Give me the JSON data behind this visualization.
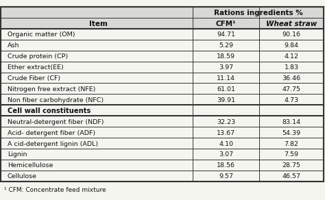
{
  "title_row": "Rations ingredients %",
  "header": [
    "Item",
    "CFM¹",
    "Wheat straw"
  ],
  "header_italic_col2": true,
  "section1_rows": [
    [
      "Organic matter (OM)",
      "94.71",
      "90.16"
    ],
    [
      "Ash",
      "5.29",
      "9.84"
    ],
    [
      "Crude protein (CP)",
      "18.59",
      "4.12"
    ],
    [
      "Ether extract(EE)",
      "3.97",
      "1.83"
    ],
    [
      "Crude Fiber (CF)",
      "11.14",
      "36.46"
    ],
    [
      "Nitrogen free extract (NFE)",
      "61.01",
      "47.75"
    ],
    [
      "Non fiber carbohydrate (NFC)",
      "39.91",
      "4.73"
    ]
  ],
  "section_header": "Cell wall constituents",
  "section2_rows": [
    [
      "Neutral-detergent fiber (NDF)",
      "32.23",
      "83.14"
    ],
    [
      "Acid- detergent fiber (ADF)",
      "13.67",
      "54.39"
    ],
    [
      "A cid-detergent lignin (ADL)",
      "4.10",
      "7.82"
    ],
    [
      "Lignin",
      "3.07",
      "7.59"
    ],
    [
      "Hemicellulose",
      "18.56",
      "28.75"
    ],
    [
      "Cellulose",
      "9.57",
      "46.57"
    ]
  ],
  "footnote": "¹ CFM: Concentrate feed mixture",
  "bg_color": "#f5f5f0",
  "header_bg": "#e8e8e8",
  "line_color": "#333333",
  "text_color": "#111111"
}
